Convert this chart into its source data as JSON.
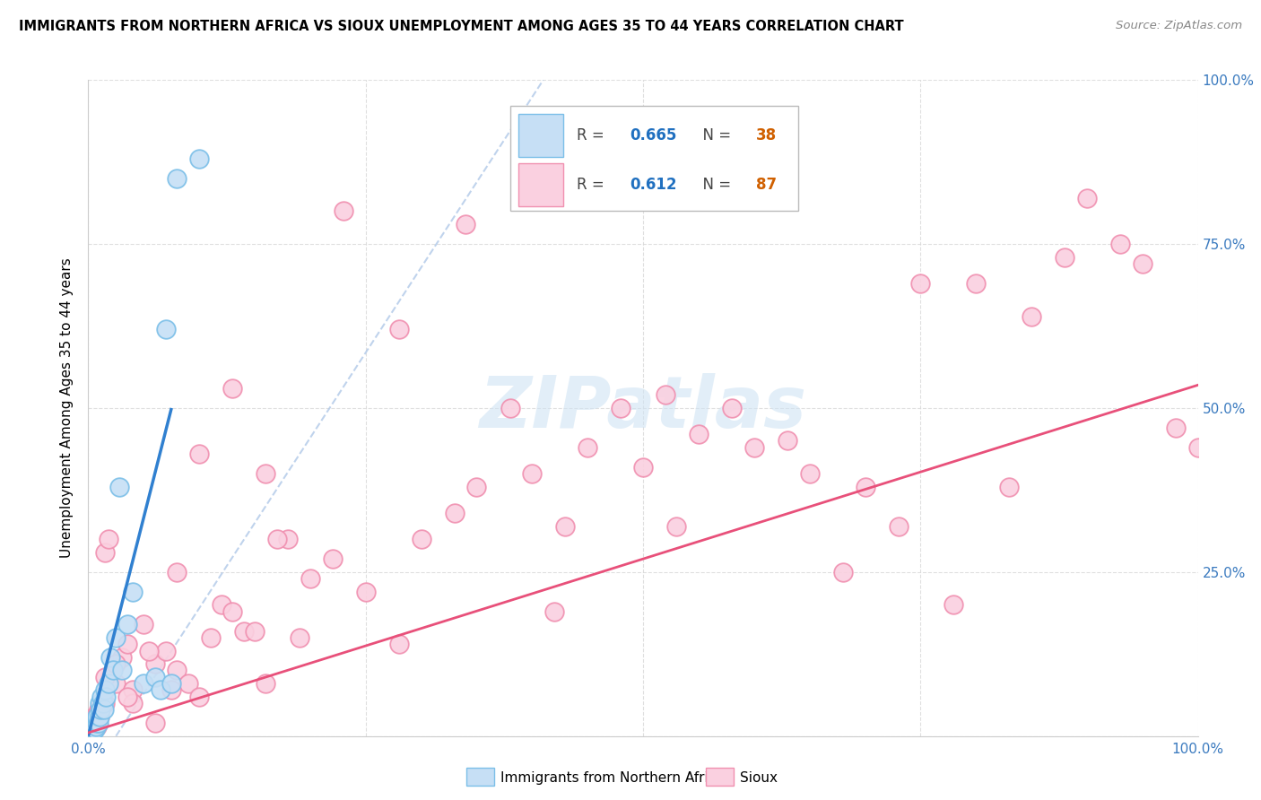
{
  "title": "IMMIGRANTS FROM NORTHERN AFRICA VS SIOUX UNEMPLOYMENT AMONG AGES 35 TO 44 YEARS CORRELATION CHART",
  "source": "Source: ZipAtlas.com",
  "ylabel": "Unemployment Among Ages 35 to 44 years",
  "xlim": [
    0.0,
    1.0
  ],
  "ylim": [
    0.0,
    1.0
  ],
  "xticks": [
    0.0,
    0.25,
    0.5,
    0.75,
    1.0
  ],
  "xticklabels": [
    "0.0%",
    "",
    "",
    "",
    "100.0%"
  ],
  "yticks": [
    0.0,
    0.25,
    0.5,
    0.75,
    1.0
  ],
  "yticklabels": [
    "",
    "25.0%",
    "50.0%",
    "75.0%",
    "100.0%"
  ],
  "blue_edge": "#7bbfe8",
  "blue_fill": "#c6dff5",
  "pink_edge": "#f090b0",
  "pink_fill": "#fad0e0",
  "trend_blue_color": "#3080d0",
  "trend_pink_color": "#e8507a",
  "dash_color": "#b0c8e8",
  "legend_r_blue": "0.665",
  "legend_n_blue": "38",
  "legend_r_pink": "0.612",
  "legend_n_pink": "87",
  "watermark_color": "#d0e4f4",
  "blue_scatter_x": [
    0.001,
    0.002,
    0.002,
    0.003,
    0.003,
    0.004,
    0.004,
    0.005,
    0.005,
    0.006,
    0.006,
    0.007,
    0.008,
    0.008,
    0.009,
    0.01,
    0.01,
    0.011,
    0.012,
    0.013,
    0.014,
    0.015,
    0.016,
    0.018,
    0.02,
    0.022,
    0.025,
    0.028,
    0.03,
    0.035,
    0.04,
    0.05,
    0.06,
    0.065,
    0.07,
    0.075,
    0.08,
    0.1
  ],
  "blue_scatter_y": [
    0.005,
    0.005,
    0.01,
    0.005,
    0.01,
    0.005,
    0.02,
    0.01,
    0.02,
    0.01,
    0.02,
    0.015,
    0.02,
    0.03,
    0.02,
    0.03,
    0.05,
    0.04,
    0.06,
    0.05,
    0.04,
    0.07,
    0.06,
    0.08,
    0.12,
    0.1,
    0.15,
    0.38,
    0.1,
    0.17,
    0.22,
    0.08,
    0.09,
    0.07,
    0.62,
    0.08,
    0.85,
    0.88
  ],
  "pink_scatter_x": [
    0.001,
    0.002,
    0.003,
    0.004,
    0.005,
    0.006,
    0.007,
    0.008,
    0.009,
    0.01,
    0.012,
    0.015,
    0.018,
    0.02,
    0.025,
    0.03,
    0.035,
    0.04,
    0.05,
    0.06,
    0.07,
    0.08,
    0.09,
    0.1,
    0.12,
    0.14,
    0.16,
    0.18,
    0.2,
    0.25,
    0.3,
    0.35,
    0.4,
    0.45,
    0.5,
    0.55,
    0.6,
    0.65,
    0.7,
    0.75,
    0.8,
    0.85,
    0.9,
    0.95,
    1.0,
    0.003,
    0.005,
    0.007,
    0.01,
    0.015,
    0.025,
    0.04,
    0.06,
    0.08,
    0.11,
    0.13,
    0.15,
    0.17,
    0.22,
    0.28,
    0.33,
    0.38,
    0.43,
    0.48,
    0.53,
    0.58,
    0.63,
    0.68,
    0.73,
    0.78,
    0.83,
    0.88,
    0.93,
    0.98,
    0.015,
    0.035,
    0.055,
    0.075,
    0.1,
    0.13,
    0.16,
    0.19,
    0.23,
    0.28,
    0.34,
    0.42,
    0.52
  ],
  "pink_scatter_y": [
    0.02,
    0.01,
    0.02,
    0.01,
    0.03,
    0.02,
    0.03,
    0.015,
    0.04,
    0.03,
    0.05,
    0.28,
    0.3,
    0.09,
    0.08,
    0.12,
    0.14,
    0.07,
    0.17,
    0.11,
    0.13,
    0.1,
    0.08,
    0.06,
    0.2,
    0.16,
    0.08,
    0.3,
    0.24,
    0.22,
    0.3,
    0.38,
    0.4,
    0.44,
    0.41,
    0.46,
    0.44,
    0.4,
    0.38,
    0.69,
    0.69,
    0.64,
    0.82,
    0.72,
    0.44,
    0.01,
    0.02,
    0.03,
    0.04,
    0.09,
    0.11,
    0.05,
    0.02,
    0.25,
    0.15,
    0.19,
    0.16,
    0.3,
    0.27,
    0.14,
    0.34,
    0.5,
    0.32,
    0.5,
    0.32,
    0.5,
    0.45,
    0.25,
    0.32,
    0.2,
    0.38,
    0.73,
    0.75,
    0.47,
    0.05,
    0.06,
    0.13,
    0.07,
    0.43,
    0.53,
    0.4,
    0.15,
    0.8,
    0.62,
    0.78,
    0.19,
    0.52
  ],
  "blue_trend_x": [
    0.0,
    0.075
  ],
  "blue_trend_y": [
    0.0,
    0.5
  ],
  "pink_trend_x": [
    0.0,
    1.0
  ],
  "pink_trend_y": [
    0.005,
    0.535
  ],
  "dash_line_x": [
    0.025,
    0.41
  ],
  "dash_line_y": [
    0.0,
    1.0
  ]
}
